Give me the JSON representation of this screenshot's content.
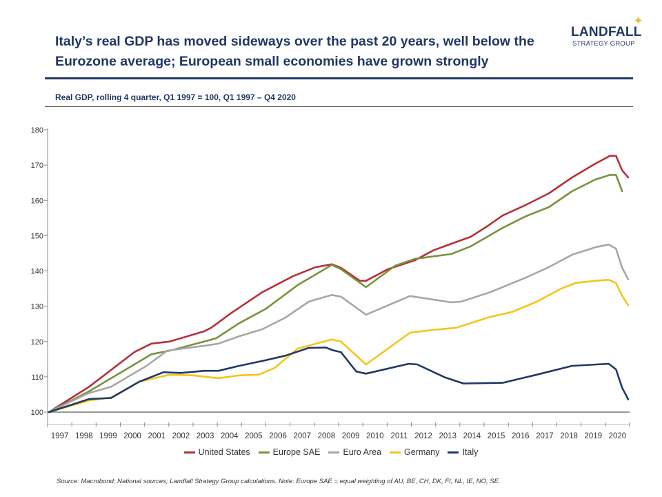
{
  "header": {
    "title": "Italy’s real GDP has moved sideways over the past 20 years, well below the Eurozone average; European small economies have grown strongly",
    "logo": {
      "main": "LANDFALL",
      "sub": "STRATEGY GROUP"
    },
    "subtitle": "Real GDP, rolling 4 quarter, Q1 1997 = 100, Q1 1997 – Q4 2020"
  },
  "footer": {
    "source": "Source: Macrobond;  National sources; Landfall Strategy Group calculations. Note: Europe SAE = equal weighting of AU, BE, CH, DK, FI, NL, IE, NO, SE."
  },
  "chart_data": {
    "type": "line",
    "title": "",
    "xlabel": "",
    "ylabel": "",
    "ylim": [
      100,
      180
    ],
    "yticks": [
      100,
      110,
      120,
      130,
      140,
      150,
      160,
      170,
      180
    ],
    "xlim": [
      1997.0,
      2020.75
    ],
    "xticks": [
      "1997",
      "1998",
      "1999",
      "2000",
      "2001",
      "2002",
      "2003",
      "2004",
      "2005",
      "2006",
      "2007",
      "2008",
      "2009",
      "2010",
      "2011",
      "2012",
      "2013",
      "2014",
      "2015",
      "2016",
      "2017",
      "2018",
      "2019",
      "2020"
    ],
    "grid": false,
    "legend_position": "bottom",
    "series": [
      {
        "name": "United States",
        "color": "#b5303a",
        "x": [
          1997.0,
          1998.65,
          2000.5,
          2001.2,
          2001.95,
          2003.37,
          2003.65,
          2004.5,
          2005.75,
          2007.0,
          2007.9,
          2008.6,
          2008.97,
          2009.75,
          2010.0,
          2010.9,
          2012.0,
          2012.75,
          2013.5,
          2014.3,
          2015.0,
          2015.6,
          2016.55,
          2017.5,
          2018.45,
          2019.4,
          2020.0,
          2020.25,
          2020.5,
          2020.75
        ],
        "y": [
          100,
          107.2,
          117,
          119.4,
          120,
          122.9,
          123.9,
          128.2,
          134,
          138.5,
          141,
          141.9,
          140.9,
          137.2,
          137.2,
          140.5,
          143,
          145.8,
          147.7,
          149.7,
          152.8,
          155.7,
          158.7,
          162,
          166.5,
          170.4,
          172.6,
          172.6,
          168.5,
          166.5
        ]
      },
      {
        "name": "Europe SAE",
        "color": "#77933c",
        "x": [
          1997.0,
          1998.65,
          1999.8,
          2001.2,
          2001.95,
          2003.37,
          2003.85,
          2004.8,
          2005.9,
          2007.2,
          2008.6,
          2008.97,
          2010.0,
          2011.2,
          2012.0,
          2013.5,
          2014.3,
          2015.6,
          2016.55,
          2017.5,
          2018.45,
          2019.4,
          2020.0,
          2020.25,
          2020.5
        ],
        "y": [
          100,
          105.9,
          110.6,
          116.4,
          117.4,
          120,
          120.9,
          125.2,
          129.3,
          136,
          141.7,
          140.5,
          135.4,
          141.5,
          143.4,
          144.8,
          147,
          152.2,
          155.5,
          158.1,
          162.6,
          165.9,
          167.2,
          167.2,
          162.6
        ]
      },
      {
        "name": "Euro Area",
        "color": "#a6a6a6",
        "x": [
          1997.0,
          1998.6,
          1999.55,
          2001.0,
          2001.85,
          2003.37,
          2003.95,
          2004.8,
          2005.75,
          2006.7,
          2007.65,
          2008.6,
          2008.97,
          2010.0,
          2011.8,
          2013.5,
          2013.9,
          2015.1,
          2016.55,
          2017.5,
          2018.45,
          2019.4,
          2019.95,
          2020.25,
          2020.5,
          2020.75
        ],
        "y": [
          100,
          105.3,
          107.2,
          113.1,
          117.4,
          118.8,
          119.4,
          121.5,
          123.5,
          126.8,
          131.3,
          133.2,
          132.7,
          127.6,
          132.9,
          131.1,
          131.3,
          134,
          138.1,
          141.1,
          144.6,
          146.7,
          147.5,
          146.3,
          140.9,
          137.6
        ]
      },
      {
        "name": "Germany",
        "color": "#f5c518",
        "x": [
          1997.0,
          1998.65,
          1999.55,
          2000.7,
          2001.95,
          2002.9,
          2003.95,
          2004.8,
          2005.6,
          2006.25,
          2007.2,
          2008.6,
          2008.97,
          2010.0,
          2011.8,
          2012.75,
          2013.7,
          2015.0,
          2016.0,
          2017.0,
          2018.0,
          2018.6,
          2019.4,
          2019.95,
          2020.25,
          2020.5,
          2020.75
        ],
        "y": [
          100,
          103.3,
          104.1,
          108.6,
          110.6,
          110.4,
          109.6,
          110.4,
          110.6,
          112.5,
          118,
          120.6,
          120,
          113.5,
          122.5,
          123.3,
          123.9,
          126.8,
          128.4,
          131.3,
          135,
          136.6,
          137.2,
          137.5,
          136.6,
          132.9,
          130.3
        ]
      },
      {
        "name": "Italy",
        "color": "#1f3864",
        "x": [
          1997.0,
          1998.65,
          1999.55,
          2000.7,
          2001.7,
          2002.4,
          2003.37,
          2003.95,
          2004.8,
          2005.75,
          2006.7,
          2007.65,
          2008.35,
          2008.65,
          2008.97,
          2009.6,
          2010.0,
          2011.75,
          2012.1,
          2013.25,
          2014.0,
          2015.6,
          2017.0,
          2018.45,
          2019.95,
          2020.25,
          2020.5,
          2020.75
        ],
        "y": [
          100,
          103.7,
          104,
          108.6,
          111.3,
          111.1,
          111.7,
          111.7,
          113.1,
          114.5,
          116,
          118.2,
          118.3,
          117.5,
          117,
          111.5,
          110.9,
          113.7,
          113.5,
          109.8,
          108.1,
          108.3,
          110.6,
          113.1,
          113.7,
          112.1,
          106.9,
          103.6
        ]
      }
    ]
  }
}
